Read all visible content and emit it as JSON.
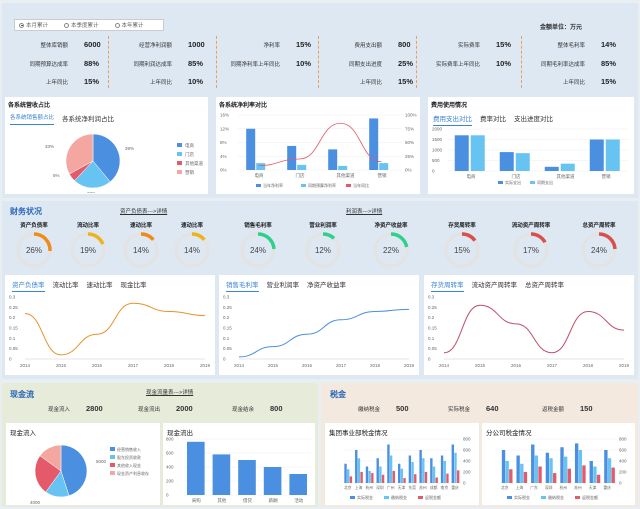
{
  "filters": [
    {
      "label": "本月累计",
      "selected": true
    },
    {
      "label": "本季度累计",
      "selected": false
    },
    {
      "label": "本年累计",
      "selected": false
    }
  ],
  "unit_label": "金额单位：万元",
  "kpi_groups": [
    [
      {
        "label": "整体库销额",
        "value": "6000"
      },
      {
        "label": "同期预算达成率",
        "value": "88%"
      },
      {
        "label": "上年同比",
        "value": "15%"
      }
    ],
    [
      {
        "label": "经营净利润额",
        "value": "1000"
      },
      {
        "label": "同期利润达成率",
        "value": "85%"
      },
      {
        "label": "上年同比",
        "value": "10%"
      }
    ],
    [
      {
        "label": "净利率",
        "value": "15%"
      },
      {
        "label": "同期净利率上年同比",
        "value": "10%"
      },
      {
        "label": "",
        "value": ""
      }
    ],
    [
      {
        "label": "费用支出额",
        "value": "800"
      },
      {
        "label": "同期支出进度",
        "value": "25%"
      },
      {
        "label": "上年同比",
        "value": "15%"
      }
    ],
    [
      {
        "label": "实际费率",
        "value": "15%"
      },
      {
        "label": "实际费率上年同比",
        "value": "10%"
      },
      {
        "label": "",
        "value": ""
      }
    ],
    [
      {
        "label": "整体毛利率",
        "value": "14%"
      },
      {
        "label": "同期毛利率达成率",
        "value": "85%"
      },
      {
        "label": "上年同比",
        "value": "15%"
      }
    ]
  ],
  "panel1": {
    "title": "各系统营收占比",
    "tabs": [
      "各系统销售额占比",
      "各系统净利润占比"
    ],
    "pie": {
      "labels": [
        "电商",
        "门店",
        "其他渠道",
        "营销"
      ],
      "values": [
        39,
        23,
        5,
        33
      ],
      "value_labels": [
        "39%",
        "23%",
        "5%",
        "33%"
      ],
      "colors": [
        "#4a8fe0",
        "#66c3f2",
        "#e55a6a",
        "#f4a6a0"
      ]
    }
  },
  "panel2": {
    "title": "各系统净利率对比",
    "categories": [
      "电商",
      "门店",
      "其他渠道",
      "营销"
    ],
    "y_left_ticks": [
      "0%",
      "4%",
      "8%",
      "12%",
      "16%"
    ],
    "y_right_ticks": [
      "0%",
      "25%",
      "50%",
      "75%",
      "100%"
    ],
    "series": [
      {
        "name": "当年净利率",
        "values": [
          12,
          7,
          6,
          15
        ],
        "color": "#4a8fe0"
      },
      {
        "name": "同期预算净利率",
        "values": [
          2,
          1.5,
          1.2,
          2
        ],
        "color": "#66c3f2"
      }
    ],
    "line": {
      "name": "当年同比",
      "values": [
        8,
        20,
        85,
        15
      ],
      "color": "#e55a6a"
    }
  },
  "panel3": {
    "title": "费用使用情况",
    "tabs": [
      "费用支出对比",
      "费率对比",
      "支出进度对比"
    ],
    "categories": [
      "电商",
      "门店",
      "其他渠道",
      "营销"
    ],
    "y_ticks": [
      "0",
      "500",
      "1000",
      "1500",
      "2000"
    ],
    "series": [
      {
        "name": "实际支出",
        "values": [
          1700,
          900,
          200,
          1500
        ],
        "color": "#4a8fe0"
      },
      {
        "name": "同期支出",
        "values": [
          1700,
          850,
          350,
          1500
        ],
        "color": "#66c3f2"
      }
    ]
  },
  "fin": {
    "title": "财务状况",
    "link1": "资产负债表--->详情",
    "link2": "利润表--->详情",
    "gauges": [
      {
        "label": "资产负债率",
        "value": 26,
        "text": "26%",
        "color": "#f08a1a"
      },
      {
        "label": "流动比率",
        "value": 19,
        "text": "19%",
        "color": "#f0b21a"
      },
      {
        "label": "速动比率",
        "value": 14,
        "text": "14%",
        "color": "#f08a1a"
      },
      {
        "label": "速动比率",
        "value": 14,
        "text": "14%",
        "color": "#f0b21a"
      },
      {
        "label": "销售毛利率",
        "value": 24,
        "text": "24%",
        "color": "#2ed08a"
      },
      {
        "label": "营业利润率",
        "value": 12,
        "text": "12%",
        "color": "#2ed08a"
      },
      {
        "label": "净资产收益率",
        "value": 22,
        "text": "22%",
        "color": "#2ed08a"
      },
      {
        "label": "存货周转率",
        "value": 15,
        "text": "15%",
        "color": "#d9504a"
      },
      {
        "label": "流动资产周转率",
        "value": 17,
        "text": "17%",
        "color": "#d9504a"
      },
      {
        "label": "总资产周转率",
        "value": 24,
        "text": "24%",
        "color": "#d9504a"
      }
    ],
    "charts": [
      {
        "tabs": [
          "资产负债率",
          "流动比率",
          "速动比率",
          "现金比率"
        ],
        "x": [
          "2014",
          "2015",
          "2016",
          "2017",
          "2018",
          "2019"
        ],
        "y_ticks": [
          "0",
          "0.05",
          "0.1",
          "0.15",
          "0.2",
          "0.25",
          "0.3"
        ],
        "values": [
          0.22,
          0.02,
          0.12,
          0.27,
          0.23,
          0.21
        ],
        "ymax": 0.3,
        "color": "#e8922a"
      },
      {
        "tabs": [
          "销售毛利率",
          "营业利润率",
          "净资产收益率"
        ],
        "x": [
          "2014",
          "2015",
          "2016",
          "2017",
          "2018",
          "2019"
        ],
        "y_ticks": [
          "0",
          "0.05",
          "0.1",
          "0.15",
          "0.2",
          "0.25",
          "0.3"
        ],
        "values": [
          0.01,
          0.06,
          0.12,
          0.19,
          0.23,
          0.24
        ],
        "ymax": 0.3,
        "color": "#4a8fe0"
      },
      {
        "tabs": [
          "存货周转率",
          "流动资产周转率",
          "总资产周转率"
        ],
        "x": [
          "2014",
          "2015",
          "2016",
          "2017",
          "2018",
          "2019"
        ],
        "y_ticks": [
          "0",
          "0.05",
          "0.1",
          "0.15",
          "0.2",
          "0.25",
          "0.3"
        ],
        "values": [
          0.03,
          0.26,
          0.17,
          0.03,
          0.23,
          0.14
        ],
        "ymax": 0.3,
        "color": "#c0506a"
      }
    ]
  },
  "cash": {
    "title": "现金流",
    "link": "现金流量表--->详情",
    "kpis": [
      {
        "label": "现金流入",
        "value": "2800"
      },
      {
        "label": "现金流出",
        "value": "2000"
      },
      {
        "label": "现金结余",
        "value": "800"
      }
    ],
    "in_panel": {
      "title": "现金流入",
      "pie_values": [
        45,
        15,
        25,
        15
      ],
      "pie_colors": [
        "#4a8fe0",
        "#66c3f2",
        "#e55a6a",
        "#f4a6a0"
      ],
      "legend": [
        "经营销售收入",
        "股东投资收款",
        "其他收入现金",
        "现金资产利息收存"
      ],
      "value_labels": [
        "5000",
        "4000"
      ]
    },
    "out_panel": {
      "title": "现金流出",
      "categories": [
        "采购",
        "其他",
        "借贷",
        "薪酬",
        "活动"
      ],
      "y_ticks": [
        "0",
        "200",
        "400",
        "600",
        "800"
      ],
      "values": [
        760,
        580,
        500,
        400,
        300
      ],
      "color": "#4a8fe0"
    }
  },
  "tax": {
    "title": "税金",
    "kpis": [
      {
        "label": "缴纳税金",
        "value": "500"
      },
      {
        "label": "实际税金",
        "value": "640"
      },
      {
        "label": "返税金额",
        "value": "150"
      }
    ],
    "group_panel": {
      "title": "集团事业部税金情况",
      "categories": [
        "北京",
        "上海",
        "杭州",
        "深圳",
        "广州",
        "天津",
        "东莞",
        "苏州",
        "成都",
        "南京",
        "重庆"
      ],
      "y_ticks": [
        "0",
        "200",
        "400",
        "600",
        "800"
      ],
      "legend": [
        "实际税金",
        "缴纳税金",
        "返税金额"
      ],
      "colors": [
        "#4a8fe0",
        "#66c3f2",
        "#e55a6a"
      ],
      "series": [
        [
          350,
          600,
          300,
          450,
          700,
          350,
          500,
          600,
          450,
          500,
          700
        ],
        [
          250,
          450,
          220,
          300,
          500,
          260,
          380,
          450,
          300,
          400,
          550
        ],
        [
          120,
          200,
          180,
          150,
          220,
          90,
          160,
          200,
          100,
          170,
          230
        ]
      ]
    },
    "branch_panel": {
      "title": "分公司税金情况",
      "categories": [
        "北京",
        "上海",
        "广东",
        "深圳",
        "杭州",
        "苏州",
        "天津",
        "重庆"
      ],
      "y_ticks": [
        "0",
        "200",
        "400",
        "600",
        "800"
      ],
      "legend": [
        "实际税金",
        "缴纳税金",
        "返税金额"
      ],
      "colors": [
        "#4a8fe0",
        "#66c3f2",
        "#e55a6a"
      ],
      "series": [
        [
          600,
          500,
          700,
          550,
          650,
          720,
          400,
          600
        ],
        [
          400,
          350,
          500,
          450,
          480,
          600,
          300,
          450
        ],
        [
          250,
          200,
          300,
          180,
          260,
          320,
          150,
          280
        ]
      ]
    }
  }
}
